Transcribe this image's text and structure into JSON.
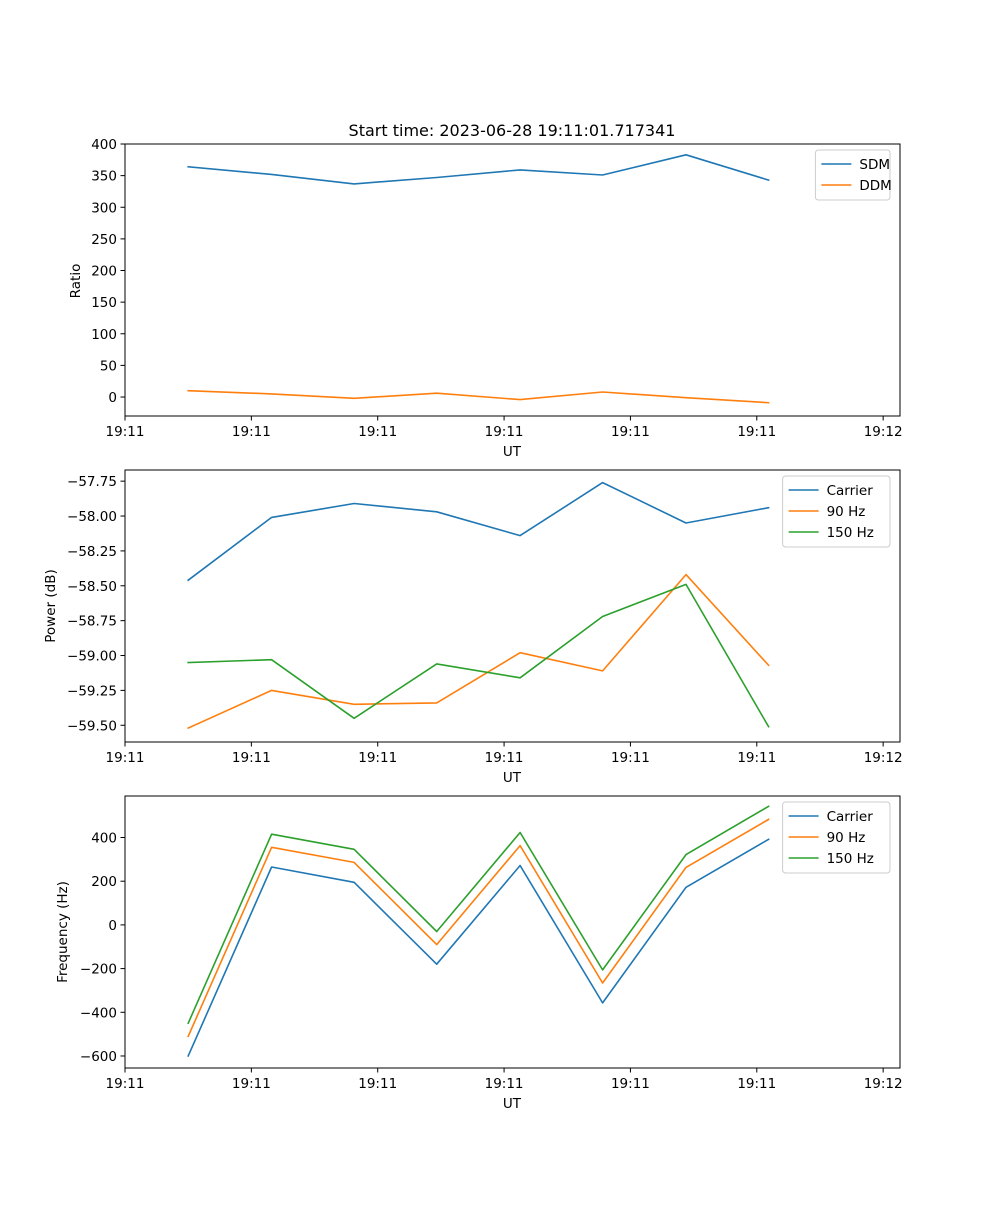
{
  "chart_data": [
    {
      "type": "line",
      "title": "Start time: 2023-06-28 19:11:01.717341",
      "xlabel": "UT",
      "ylabel": "Ratio",
      "xlim": [
        0,
        9.2
      ],
      "ylim": [
        -30,
        400
      ],
      "x_ticks": [
        {
          "x": 0,
          "label": "19:11"
        },
        {
          "x": 1.5,
          "label": "19:11"
        },
        {
          "x": 3.0,
          "label": "19:11"
        },
        {
          "x": 4.5,
          "label": "19:11"
        },
        {
          "x": 6.0,
          "label": "19:11"
        },
        {
          "x": 7.5,
          "label": "19:11"
        },
        {
          "x": 9.0,
          "label": "19:12"
        }
      ],
      "y_ticks": [
        0,
        50,
        100,
        150,
        200,
        250,
        300,
        350,
        400
      ],
      "grid": false,
      "legend": "top-right",
      "x": [
        0.75,
        1.74,
        2.72,
        3.7,
        4.69,
        5.67,
        6.66,
        7.64
      ],
      "series": [
        {
          "name": "SDM",
          "color": "#1f77b4",
          "values": [
            364,
            352,
            337,
            347,
            359,
            351,
            383,
            343
          ]
        },
        {
          "name": "DDM",
          "color": "#ff7f0e",
          "values": [
            10,
            5,
            -2,
            6,
            -4,
            8,
            -1,
            -9
          ]
        }
      ]
    },
    {
      "type": "line",
      "title": "",
      "xlabel": "UT",
      "ylabel": "Power (dB)",
      "xlim": [
        0,
        9.2
      ],
      "ylim": [
        -59.62,
        -57.67
      ],
      "x_ticks": [
        {
          "x": 0,
          "label": "19:11"
        },
        {
          "x": 1.5,
          "label": "19:11"
        },
        {
          "x": 3.0,
          "label": "19:11"
        },
        {
          "x": 4.5,
          "label": "19:11"
        },
        {
          "x": 6.0,
          "label": "19:11"
        },
        {
          "x": 7.5,
          "label": "19:11"
        },
        {
          "x": 9.0,
          "label": "19:12"
        }
      ],
      "y_ticks": [
        -59.5,
        -59.25,
        -59.0,
        -58.75,
        -58.5,
        -58.25,
        -58.0,
        -57.75
      ],
      "y_tick_labels": [
        "−59.50",
        "−59.25",
        "−59.00",
        "−58.75",
        "−58.50",
        "−58.25",
        "−58.00",
        "−57.75"
      ],
      "grid": false,
      "legend": "top-right",
      "x": [
        0.75,
        1.74,
        2.72,
        3.7,
        4.69,
        5.67,
        6.66,
        7.64
      ],
      "series": [
        {
          "name": "Carrier",
          "color": "#1f77b4",
          "values": [
            -58.46,
            -58.01,
            -57.91,
            -57.97,
            -58.14,
            -57.76,
            -58.05,
            -57.94
          ]
        },
        {
          "name": "90 Hz",
          "color": "#ff7f0e",
          "values": [
            -59.52,
            -59.25,
            -59.35,
            -59.34,
            -58.98,
            -59.11,
            -58.42,
            -59.07
          ]
        },
        {
          "name": "150 Hz",
          "color": "#2ca02c",
          "values": [
            -59.05,
            -59.03,
            -59.45,
            -59.06,
            -59.16,
            -58.72,
            -58.49,
            -59.51
          ]
        }
      ]
    },
    {
      "type": "line",
      "title": "",
      "xlabel": "UT",
      "ylabel": "Frequency (Hz)",
      "xlim": [
        0,
        9.2
      ],
      "ylim": [
        -655,
        590
      ],
      "x_ticks": [
        {
          "x": 0,
          "label": "19:11"
        },
        {
          "x": 1.5,
          "label": "19:11"
        },
        {
          "x": 3.0,
          "label": "19:11"
        },
        {
          "x": 4.5,
          "label": "19:11"
        },
        {
          "x": 6.0,
          "label": "19:11"
        },
        {
          "x": 7.5,
          "label": "19:11"
        },
        {
          "x": 9.0,
          "label": "19:12"
        }
      ],
      "y_ticks": [
        -600,
        -400,
        -200,
        0,
        200,
        400
      ],
      "y_tick_labels": [
        "−600",
        "−400",
        "−200",
        "0",
        "200",
        "400"
      ],
      "grid": false,
      "legend": "top-right",
      "x": [
        0.75,
        1.74,
        2.72,
        3.7,
        4.69,
        5.67,
        6.66,
        7.64
      ],
      "series": [
        {
          "name": "Carrier",
          "color": "#1f77b4",
          "values": [
            -600,
            265,
            195,
            -180,
            272,
            -357,
            172,
            392
          ]
        },
        {
          "name": "90 Hz",
          "color": "#ff7f0e",
          "values": [
            -510,
            355,
            286,
            -90,
            363,
            -266,
            263,
            483
          ]
        },
        {
          "name": "150 Hz",
          "color": "#2ca02c",
          "values": [
            -450,
            415,
            346,
            -30,
            423,
            -206,
            322,
            543
          ]
        }
      ]
    }
  ]
}
